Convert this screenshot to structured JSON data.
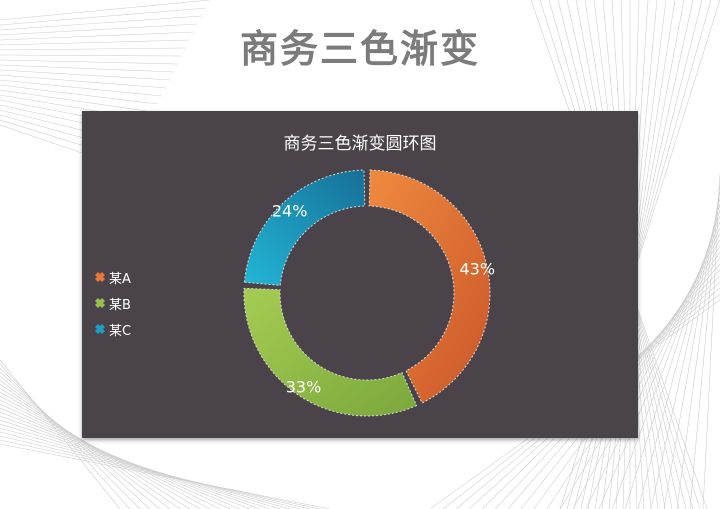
{
  "page": {
    "title": "商务三色渐变"
  },
  "chart_data": {
    "type": "pie",
    "variant": "donut",
    "title": "商务三色渐变圆环图",
    "categories": [
      "某A",
      "某B",
      "某C"
    ],
    "values": [
      43,
      33,
      24
    ],
    "labels": [
      "43%",
      "33%",
      "24%"
    ],
    "colors": [
      "#e8793a",
      "#98c04a",
      "#1e9ec4"
    ],
    "legend_position": "left"
  }
}
